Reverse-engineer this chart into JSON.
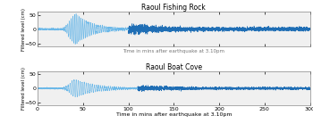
{
  "title1": "Raoul Fishing Rock",
  "title2": "Raoul Boat Cove",
  "xlabel": "Time in mins after earthquake at 3.10pm",
  "ylabel": "Filtered level (cm)",
  "xlim": [
    0,
    300
  ],
  "ylim": [
    -60,
    60
  ],
  "yticks": [
    -50,
    0,
    50
  ],
  "xticks": [
    0,
    50,
    100,
    150,
    200,
    250,
    300
  ],
  "line_color": "#1f6eb5",
  "line_color_light": "#6bb8e8",
  "background_color": "#f0f0f0",
  "line_width": 0.4,
  "n_points": 6000,
  "total_time": 300,
  "quiet_noise1": 1.5,
  "quiet_noise2": 1.2,
  "late_noise1": 4.5,
  "late_noise2": 3.0,
  "burst1_start": 28,
  "burst1_peak": 42,
  "burst1_end": 100,
  "burst1_amplitude": 52,
  "burst1_decay": 18,
  "burst1_freq": 0.55,
  "burst2_start": 28,
  "burst2_peak": 42,
  "burst2_end": 110,
  "burst2_amplitude": 30,
  "burst2_decay": 22,
  "burst2_freq": 0.45,
  "seed1": 7,
  "seed2": 13
}
